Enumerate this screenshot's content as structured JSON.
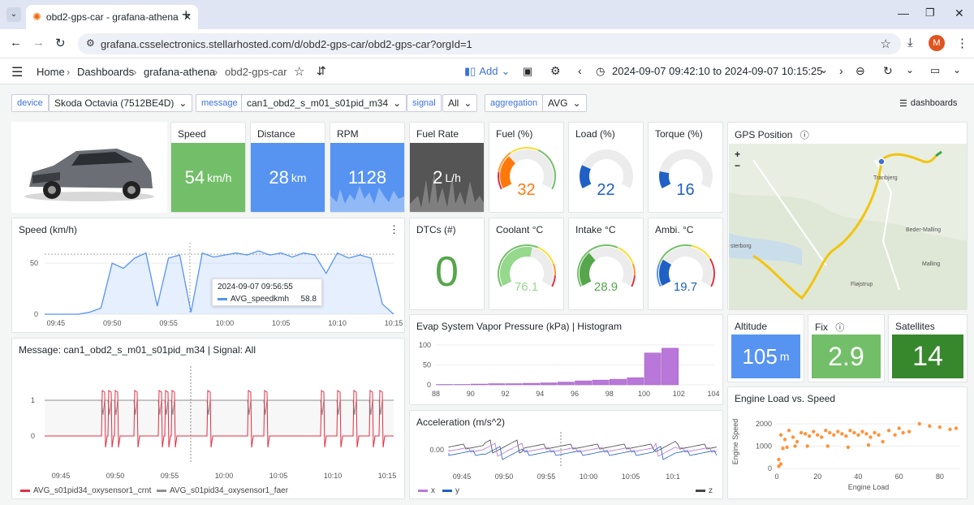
{
  "browser": {
    "tab_title": "obd2-gps-car - grafana-athena",
    "url": "grafana.csselectronics.stellarhosted.com/d/obd2-gps-car/obd2-gps-car?orgId=1",
    "avatar_letter": "M"
  },
  "nav": {
    "crumbs": [
      "Home",
      "Dashboards",
      "grafana-athena",
      "obd2-gps-car"
    ],
    "add_label": "Add",
    "time_range": "2024-09-07 09:42:10 to 2024-09-07 10:15:25"
  },
  "variables": {
    "device_label": "device",
    "device_value": "Skoda Octavia (7512BE4D)",
    "message_label": "message",
    "message_value": "can1_obd2_s_m01_s01pid_m34",
    "signal_label": "signal",
    "signal_value": "All",
    "aggregation_label": "aggregation",
    "aggregation_value": "AVG",
    "dashboards_link": "dashboards"
  },
  "stats": {
    "speed": {
      "title": "Speed",
      "value": "54",
      "unit": "km/h",
      "color": "#73bf69"
    },
    "distance": {
      "title": "Distance",
      "value": "28",
      "unit": "km",
      "color": "#5794f2"
    },
    "rpm": {
      "title": "RPM",
      "value": "1128",
      "unit": "",
      "color": "#5794f2"
    },
    "fuel_rate": {
      "title": "Fuel Rate",
      "value": "2",
      "unit": "L/h",
      "color": "#555555"
    },
    "dtcs": {
      "title": "DTCs (#)",
      "value": "0",
      "color": "#56a64b"
    },
    "altitude": {
      "title": "Altitude",
      "value": "105",
      "unit": "m",
      "color": "#5794f2"
    },
    "fix": {
      "title": "Fix",
      "value": "2.9",
      "color": "#73bf69"
    },
    "satellites": {
      "title": "Satellites",
      "value": "14",
      "color": "#37872d"
    }
  },
  "gauges": {
    "fuel": {
      "title": "Fuel (%)",
      "value": "32",
      "fraction": 0.32,
      "color": "#ff780a"
    },
    "load": {
      "title": "Load (%)",
      "value": "22",
      "fraction": 0.22,
      "color": "#1f60c4"
    },
    "torque": {
      "title": "Torque (%)",
      "value": "16",
      "fraction": 0.16,
      "color": "#1f60c4"
    },
    "coolant": {
      "title": "Coolant °C",
      "value": "76.1",
      "fraction": 0.55,
      "color": "#96d98d"
    },
    "intake": {
      "title": "Intake °C",
      "value": "28.9",
      "fraction": 0.33,
      "color": "#56a64b"
    },
    "ambi": {
      "title": "Ambi. °C",
      "value": "19.7",
      "fraction": 0.25,
      "color": "#1f60c4"
    }
  },
  "gps": {
    "title": "GPS Position",
    "zoom_in": "+",
    "zoom_out": "−",
    "place_labels": [
      "Tranbjerg",
      "Beder-Malling",
      "Malling",
      "Fløjstrup",
      "sterborg"
    ]
  },
  "speed_chart": {
    "title": "Speed (km/h)",
    "x_ticks": [
      "09:45",
      "09:50",
      "09:55",
      "10:00",
      "10:05",
      "10:10",
      "10:15"
    ],
    "y_ticks": [
      "50",
      "0"
    ],
    "tooltip_time": "2024-09-07 09:56:55",
    "tooltip_series": "AVG_speedkmh",
    "tooltip_value": "58.8",
    "series_color": "#5794f2"
  },
  "message_chart": {
    "title": "Message: can1_obd2_s_m01_s01pid_m34 | Signal: All",
    "x_ticks": [
      "09:45",
      "09:50",
      "09:55",
      "10:00",
      "10:05",
      "10:10",
      "10:15"
    ],
    "y_ticks": [
      "1",
      "0"
    ],
    "legend": [
      {
        "name": "AVG_s01pid34_oxysensor1_crnt",
        "color": "#e02f44"
      },
      {
        "name": "AVG_s01pid34_oxysensor1_faer",
        "color": "#8e8e8e"
      }
    ]
  },
  "evap_chart": {
    "title": "Evap System Vapor Pressure (kPa) | Histogram",
    "x_ticks": [
      "88",
      "90",
      "92",
      "94",
      "96",
      "98",
      "100",
      "102",
      "104"
    ],
    "y_ticks": [
      "100",
      "50",
      "0"
    ],
    "bar_color": "#b877d9"
  },
  "accel_chart": {
    "title": "Acceleration (m/s^2)",
    "x_ticks": [
      "09:45",
      "09:50",
      "09:55",
      "10:00",
      "10:05",
      "10:1"
    ],
    "y_ticks": [
      "0.00"
    ],
    "legend": [
      {
        "name": "x",
        "color": "#b877d9"
      },
      {
        "name": "y",
        "color": "#1f60c4"
      },
      {
        "name": "z",
        "color": "#464646"
      }
    ]
  },
  "scatter_chart": {
    "title": "Engine Load vs. Speed",
    "xlabel": "Engine Load",
    "ylabel": "Engine Speed",
    "x_ticks": [
      "0",
      "20",
      "40",
      "60",
      "80"
    ],
    "y_ticks": [
      "2000",
      "1000",
      "0"
    ],
    "point_color": "#ff780a"
  },
  "chart_data": [
    {
      "type": "line",
      "title": "Speed (km/h)",
      "ylim": [
        0,
        70
      ],
      "x": [
        "09:44",
        "09:45",
        "09:46",
        "09:47",
        "09:48",
        "09:49",
        "09:50",
        "09:51",
        "09:52",
        "09:53",
        "09:54",
        "09:55",
        "09:56",
        "09:57",
        "09:58",
        "09:59",
        "10:00",
        "10:01",
        "10:02",
        "10:03",
        "10:04",
        "10:05",
        "10:06",
        "10:07",
        "10:08",
        "10:09",
        "10:10",
        "10:11",
        "10:12",
        "10:13",
        "10:14",
        "10:15"
      ],
      "series": [
        {
          "name": "AVG_speedkmh",
          "values": [
            0,
            0,
            0,
            0,
            2,
            6,
            50,
            45,
            55,
            60,
            8,
            55,
            58,
            2,
            60,
            56,
            58,
            60,
            58,
            62,
            58,
            60,
            56,
            60,
            58,
            40,
            60,
            55,
            58,
            55,
            10,
            0
          ]
        }
      ]
    },
    {
      "type": "bar",
      "title": "Evap System Vapor Pressure (kPa) | Histogram",
      "categories": [
        "88",
        "89",
        "90",
        "91",
        "92",
        "93",
        "94",
        "95",
        "96",
        "97",
        "98",
        "99",
        "100",
        "101",
        "102",
        "103"
      ],
      "values": [
        1,
        1,
        2,
        3,
        3,
        4,
        5,
        7,
        10,
        12,
        14,
        18,
        80,
        92,
        0,
        0
      ],
      "ylim": [
        0,
        110
      ]
    },
    {
      "type": "scatter",
      "title": "Engine Load vs. Speed",
      "xlabel": "Engine Load",
      "ylabel": "Engine Speed",
      "xlim": [
        0,
        90
      ],
      "ylim": [
        0,
        2400
      ],
      "x": [
        2,
        4,
        6,
        8,
        10,
        12,
        14,
        16,
        18,
        20,
        22,
        24,
        26,
        28,
        30,
        32,
        34,
        36,
        38,
        40,
        42,
        44,
        46,
        48,
        50,
        55,
        60,
        65,
        70,
        75,
        80,
        85,
        88,
        1,
        3,
        5,
        9,
        15,
        25,
        35,
        45,
        52,
        58,
        62,
        1,
        2
      ],
      "y": [
        1500,
        1300,
        1700,
        1400,
        1200,
        1600,
        1550,
        1450,
        1650,
        1500,
        1400,
        1700,
        1600,
        1500,
        1650,
        1550,
        1450,
        1700,
        1600,
        1500,
        1650,
        1550,
        1400,
        1600,
        1500,
        1700,
        1800,
        1650,
        2000,
        1900,
        1850,
        1750,
        1800,
        100,
        900,
        950,
        1000,
        1000,
        1000,
        950,
        1050,
        1200,
        1500,
        1600,
        400,
        200
      ]
    }
  ]
}
